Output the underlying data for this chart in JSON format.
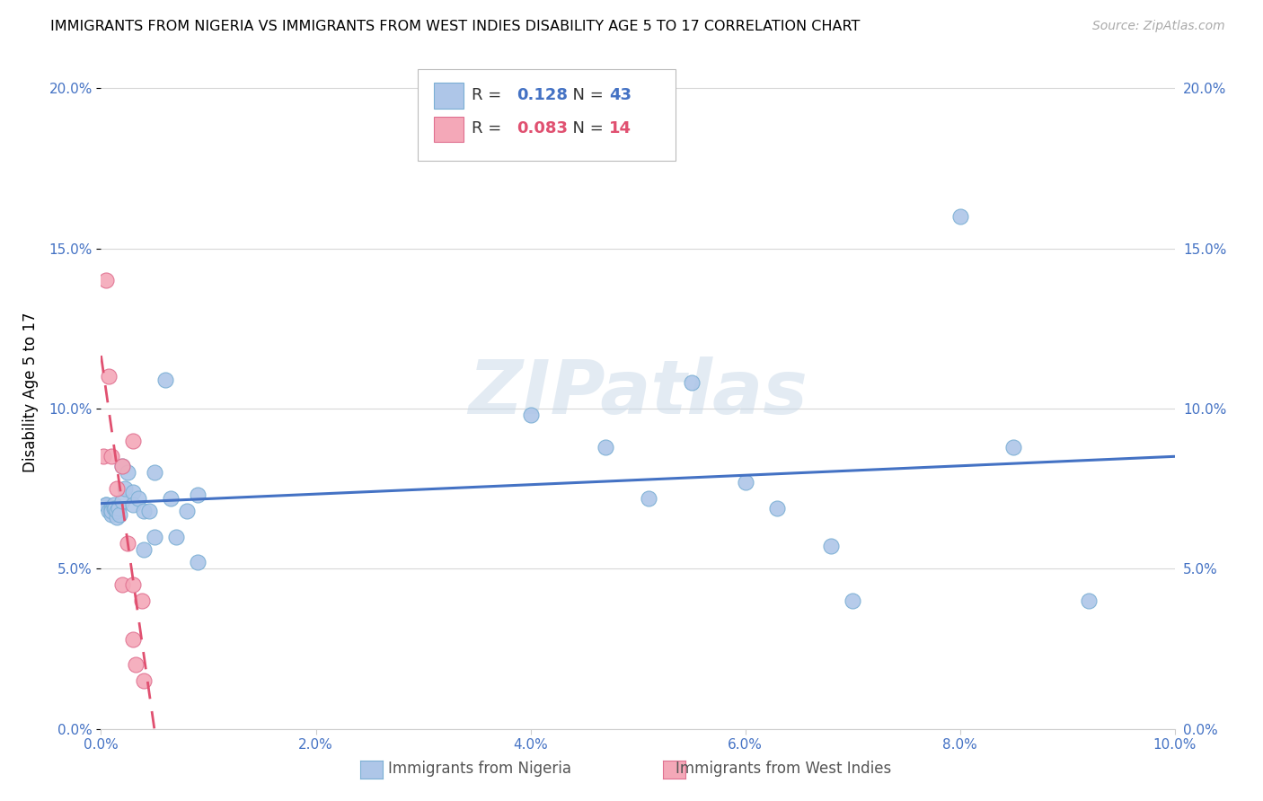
{
  "title": "IMMIGRANTS FROM NIGERIA VS IMMIGRANTS FROM WEST INDIES DISABILITY AGE 5 TO 17 CORRELATION CHART",
  "source": "Source: ZipAtlas.com",
  "xlabel_label": "Immigrants from Nigeria",
  "xlabel_label2": "Immigrants from West Indies",
  "ylabel": "Disability Age 5 to 17",
  "xlim": [
    0.0,
    0.1
  ],
  "ylim": [
    0.0,
    0.21
  ],
  "xticks": [
    0.0,
    0.02,
    0.04,
    0.06,
    0.08,
    0.1
  ],
  "yticks": [
    0.0,
    0.05,
    0.1,
    0.15,
    0.2
  ],
  "nigeria_R": 0.128,
  "nigeria_N": 43,
  "westindies_R": 0.083,
  "westindies_N": 14,
  "nigeria_x": [
    0.0005,
    0.0005,
    0.0007,
    0.001,
    0.001,
    0.001,
    0.001,
    0.0012,
    0.0012,
    0.0013,
    0.0015,
    0.0015,
    0.0016,
    0.0017,
    0.002,
    0.002,
    0.0022,
    0.0025,
    0.003,
    0.003,
    0.0035,
    0.004,
    0.004,
    0.0045,
    0.005,
    0.005,
    0.006,
    0.0065,
    0.007,
    0.008,
    0.009,
    0.009,
    0.04,
    0.047,
    0.051,
    0.055,
    0.06,
    0.063,
    0.068,
    0.07,
    0.08,
    0.085,
    0.092
  ],
  "nigeria_y": [
    0.07,
    0.07,
    0.068,
    0.069,
    0.068,
    0.067,
    0.068,
    0.069,
    0.07,
    0.069,
    0.066,
    0.068,
    0.069,
    0.067,
    0.082,
    0.071,
    0.075,
    0.08,
    0.074,
    0.07,
    0.072,
    0.068,
    0.056,
    0.068,
    0.08,
    0.06,
    0.109,
    0.072,
    0.06,
    0.068,
    0.073,
    0.052,
    0.098,
    0.088,
    0.072,
    0.108,
    0.077,
    0.069,
    0.057,
    0.04,
    0.16,
    0.088,
    0.04
  ],
  "westindies_x": [
    0.0002,
    0.0005,
    0.0007,
    0.001,
    0.0015,
    0.002,
    0.002,
    0.0025,
    0.003,
    0.003,
    0.003,
    0.0032,
    0.0038,
    0.004
  ],
  "westindies_y": [
    0.085,
    0.14,
    0.11,
    0.085,
    0.075,
    0.082,
    0.045,
    0.058,
    0.09,
    0.045,
    0.028,
    0.02,
    0.04,
    0.015
  ],
  "nigeria_color": "#aec6e8",
  "nigeria_edge": "#7bafd4",
  "westindies_color": "#f4a8b8",
  "westindies_edge": "#e07090",
  "line_nigeria_color": "#4472c4",
  "line_westindies_color": "#e05070",
  "background_color": "#ffffff",
  "grid_color": "#d8d8d8",
  "watermark": "ZIPatlas",
  "title_fontsize": 11.5,
  "tick_fontsize": 11,
  "label_fontsize": 12
}
